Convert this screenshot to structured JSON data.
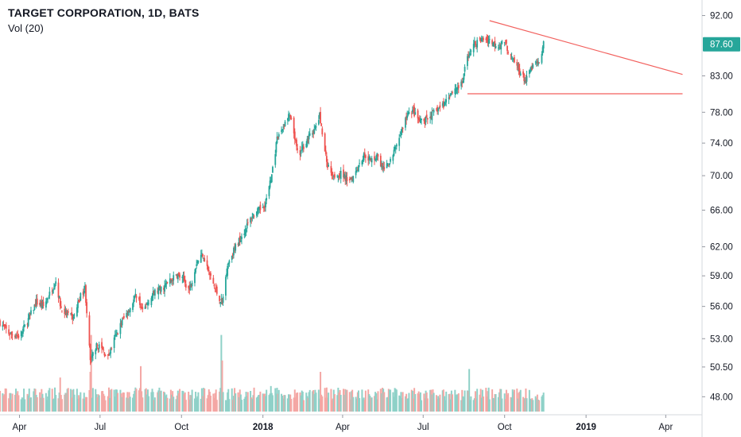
{
  "header": {
    "title": "TARGET CORPORATION, 1D, BATS",
    "indicator": "Vol (20)"
  },
  "colors": {
    "up": "#26a69a",
    "down": "#ef5350",
    "up_volume": "#8fd1c8",
    "down_volume": "#f4a7a4",
    "trendline": "#f25f5c",
    "axis_text": "#131722",
    "last_price_bg": "#26a69a"
  },
  "chart_data": {
    "type": "candlestick",
    "symbol": "TARGET CORPORATION",
    "interval": "1D",
    "exchange": "BATS",
    "y_ticks": [
      "92.00",
      "83.00",
      "78.00",
      "74.00",
      "70.00",
      "66.00",
      "62.00",
      "59.00",
      "56.00",
      "53.00",
      "50.50",
      "48.00"
    ],
    "y_scale": "log",
    "y_range": [
      46.8,
      93.2
    ],
    "x_ticks": [
      {
        "label": "Apr",
        "date": "2017-04-01",
        "bold": false
      },
      {
        "label": "Jul",
        "date": "2017-07-01",
        "bold": false
      },
      {
        "label": "Oct",
        "date": "2017-10-01",
        "bold": false
      },
      {
        "label": "2018",
        "date": "2018-01-01",
        "bold": true
      },
      {
        "label": "Apr",
        "date": "2018-04-01",
        "bold": false
      },
      {
        "label": "Jul",
        "date": "2018-07-01",
        "bold": false
      },
      {
        "label": "Oct",
        "date": "2018-10-01",
        "bold": false
      },
      {
        "label": "2019",
        "date": "2019-01-01",
        "bold": true
      },
      {
        "label": "Apr",
        "date": "2019-04-01",
        "bold": false
      }
    ],
    "x_range": [
      "2017-03-10",
      "2019-05-12"
    ],
    "last_price": "87.60",
    "close_path": [
      [
        "2017-03-10",
        54.5
      ],
      [
        "2017-03-20",
        53.5
      ],
      [
        "2017-04-01",
        53.2
      ],
      [
        "2017-04-10",
        54.6
      ],
      [
        "2017-04-20",
        56.4
      ],
      [
        "2017-04-28",
        56.0
      ],
      [
        "2017-05-05",
        57.2
      ],
      [
        "2017-05-12",
        58.5
      ],
      [
        "2017-05-18",
        55.8
      ],
      [
        "2017-05-25",
        55.2
      ],
      [
        "2017-06-01",
        54.9
      ],
      [
        "2017-06-08",
        56.8
      ],
      [
        "2017-06-14",
        57.8
      ],
      [
        "2017-06-20",
        51.0
      ],
      [
        "2017-06-26",
        52.3
      ],
      [
        "2017-07-01",
        52.3
      ],
      [
        "2017-07-10",
        51.3
      ],
      [
        "2017-07-18",
        53.1
      ],
      [
        "2017-07-26",
        54.6
      ],
      [
        "2017-08-04",
        55.9
      ],
      [
        "2017-08-12",
        57.3
      ],
      [
        "2017-08-18",
        55.4
      ],
      [
        "2017-08-25",
        56.6
      ],
      [
        "2017-09-01",
        57.4
      ],
      [
        "2017-09-10",
        57.8
      ],
      [
        "2017-09-18",
        58.5
      ],
      [
        "2017-09-26",
        59.1
      ],
      [
        "2017-10-03",
        58.6
      ],
      [
        "2017-10-10",
        57.6
      ],
      [
        "2017-10-18",
        60.4
      ],
      [
        "2017-10-25",
        61.3
      ],
      [
        "2017-11-01",
        59.3
      ],
      [
        "2017-11-10",
        57.3
      ],
      [
        "2017-11-16",
        56.3
      ],
      [
        "2017-11-22",
        60.2
      ],
      [
        "2017-12-01",
        62.0
      ],
      [
        "2017-12-10",
        63.5
      ],
      [
        "2017-12-20",
        65.4
      ],
      [
        "2017-12-28",
        66.0
      ],
      [
        "2018-01-04",
        66.8
      ],
      [
        "2018-01-10",
        69.5
      ],
      [
        "2018-01-17",
        74.4
      ],
      [
        "2018-01-24",
        76.2
      ],
      [
        "2018-01-31",
        77.6
      ],
      [
        "2018-02-05",
        75.3
      ],
      [
        "2018-02-10",
        72.1
      ],
      [
        "2018-02-15",
        73.5
      ],
      [
        "2018-02-22",
        74.8
      ],
      [
        "2018-03-01",
        75.8
      ],
      [
        "2018-03-06",
        77.5
      ],
      [
        "2018-03-10",
        74.2
      ],
      [
        "2018-03-15",
        71.2
      ],
      [
        "2018-03-22",
        70.1
      ],
      [
        "2018-03-30",
        70.2
      ],
      [
        "2018-04-06",
        69.6
      ],
      [
        "2018-04-12",
        69.8
      ],
      [
        "2018-04-19",
        71.3
      ],
      [
        "2018-04-26",
        72.6
      ],
      [
        "2018-05-03",
        71.8
      ],
      [
        "2018-05-10",
        72.5
      ],
      [
        "2018-05-16",
        70.8
      ],
      [
        "2018-05-23",
        71.2
      ],
      [
        "2018-05-30",
        73.2
      ],
      [
        "2018-06-06",
        75.4
      ],
      [
        "2018-06-12",
        77.3
      ],
      [
        "2018-06-19",
        78.3
      ],
      [
        "2018-06-26",
        76.8
      ],
      [
        "2018-07-03",
        76.8
      ],
      [
        "2018-07-10",
        77.6
      ],
      [
        "2018-07-17",
        78.4
      ],
      [
        "2018-07-24",
        79.0
      ],
      [
        "2018-07-31",
        80.5
      ],
      [
        "2018-08-07",
        81.3
      ],
      [
        "2018-08-14",
        81.8
      ],
      [
        "2018-08-20",
        85.8
      ],
      [
        "2018-08-27",
        87.5
      ],
      [
        "2018-09-04",
        88.2
      ],
      [
        "2018-09-11",
        88.5
      ],
      [
        "2018-09-18",
        87.8
      ],
      [
        "2018-09-25",
        87.4
      ],
      [
        "2018-10-01",
        88.1
      ],
      [
        "2018-10-08",
        85.6
      ],
      [
        "2018-10-14",
        84.6
      ],
      [
        "2018-10-20",
        83.2
      ],
      [
        "2018-10-25",
        82.2
      ],
      [
        "2018-10-30",
        83.8
      ],
      [
        "2018-11-05",
        84.8
      ],
      [
        "2018-11-09",
        84.6
      ],
      [
        "2018-11-14",
        87.6
      ]
    ],
    "trendlines": [
      {
        "name": "descending-resistance",
        "from": {
          "date": "2018-09-14",
          "price": 91.2
        },
        "to": {
          "date": "2019-04-20",
          "price": 83.2
        }
      },
      {
        "name": "horizontal-support",
        "from": {
          "date": "2018-08-20",
          "price": 80.5
        },
        "to": {
          "date": "2019-04-20",
          "price": 80.5
        }
      }
    ],
    "volume": {
      "label": "Vol (20)",
      "max_millions": 28,
      "spikes": [
        {
          "date": "2017-05-17",
          "millions": 12
        },
        {
          "date": "2017-06-20",
          "millions": 14
        },
        {
          "date": "2017-06-21",
          "millions": 27
        },
        {
          "date": "2017-07-15",
          "millions": 10
        },
        {
          "date": "2017-08-16",
          "millions": 16
        },
        {
          "date": "2017-11-15",
          "millions": 27
        },
        {
          "date": "2017-11-16",
          "millions": 18
        },
        {
          "date": "2018-01-10",
          "millions": 9
        },
        {
          "date": "2018-03-07",
          "millions": 14
        },
        {
          "date": "2018-05-23",
          "millions": 8
        },
        {
          "date": "2018-08-22",
          "millions": 15
        },
        {
          "date": "2018-11-20",
          "millions": 9
        }
      ]
    }
  }
}
